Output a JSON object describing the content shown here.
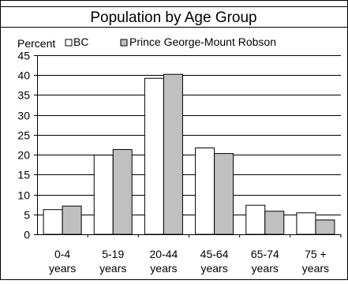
{
  "chart_data": {
    "type": "bar",
    "title": "Population by Age Group",
    "ylabel": "Percent",
    "xlabel": "",
    "ylim": [
      0,
      45
    ],
    "yticks": [
      0,
      5,
      10,
      15,
      20,
      25,
      30,
      35,
      40,
      45
    ],
    "grid": true,
    "legend_position": "top",
    "categories": [
      [
        "0-4",
        "years"
      ],
      [
        "5-19",
        "years"
      ],
      [
        "20-44",
        "years"
      ],
      [
        "45-64",
        "years"
      ],
      [
        "65-74",
        "years"
      ],
      [
        "75 +",
        "years"
      ]
    ],
    "series": [
      {
        "name": "BC",
        "color": "#ffffff",
        "values": [
          6.2,
          19.9,
          39.2,
          21.7,
          7.3,
          5.4
        ]
      },
      {
        "name": "Prince George-Mount Robson",
        "color": "#c0c0c0",
        "values": [
          7.1,
          21.3,
          40.2,
          20.3,
          5.8,
          3.6
        ]
      }
    ]
  }
}
